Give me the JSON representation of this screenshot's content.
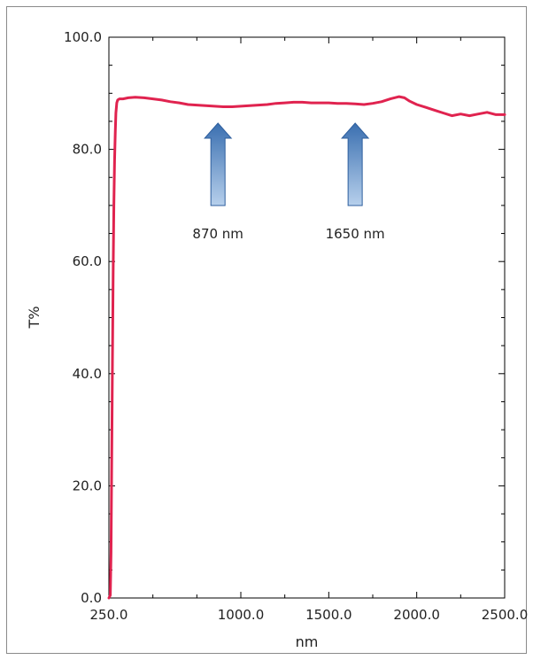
{
  "chart_data": {
    "type": "line",
    "xlabel": "nm",
    "ylabel": "T%",
    "xlim": [
      250.0,
      2500.0
    ],
    "ylim": [
      0.0,
      100.0
    ],
    "x_ticks": [
      {
        "value": 250.0,
        "label": "250.0"
      },
      {
        "value": 1000.0,
        "label": "1000.0"
      },
      {
        "value": 1500.0,
        "label": "1500.0"
      },
      {
        "value": 2000.0,
        "label": "2000.0"
      },
      {
        "value": 2500.0,
        "label": "2500.0"
      }
    ],
    "y_ticks": [
      {
        "value": 0.0,
        "label": "0.0"
      },
      {
        "value": 20.0,
        "label": "20.0"
      },
      {
        "value": 40.0,
        "label": "40.0"
      },
      {
        "value": 60.0,
        "label": "60.0"
      },
      {
        "value": 80.0,
        "label": "80.0"
      },
      {
        "value": 100.0,
        "label": "100.0"
      }
    ],
    "grid": false,
    "series": [
      {
        "color": "#e0234f",
        "x": [
          250,
          258,
          262,
          266,
          270,
          274,
          278,
          282,
          286,
          290,
          295,
          300,
          310,
          330,
          360,
          400,
          450,
          500,
          550,
          600,
          650,
          700,
          750,
          800,
          850,
          900,
          950,
          1000,
          1050,
          1100,
          1150,
          1200,
          1250,
          1300,
          1350,
          1400,
          1450,
          1500,
          1550,
          1600,
          1650,
          1700,
          1750,
          1800,
          1850,
          1900,
          1930,
          1960,
          2000,
          2050,
          2100,
          2150,
          2200,
          2250,
          2300,
          2350,
          2400,
          2450,
          2500
        ],
        "y": [
          0.0,
          0.5,
          8.0,
          25.0,
          42.0,
          58.0,
          70.0,
          78.0,
          83.0,
          86.5,
          88.3,
          88.8,
          89.0,
          89.0,
          89.2,
          89.3,
          89.2,
          89.0,
          88.8,
          88.5,
          88.3,
          88.0,
          87.9,
          87.8,
          87.7,
          87.6,
          87.6,
          87.7,
          87.8,
          87.9,
          88.0,
          88.2,
          88.3,
          88.4,
          88.4,
          88.3,
          88.3,
          88.3,
          88.2,
          88.2,
          88.1,
          88.0,
          88.2,
          88.5,
          89.0,
          89.4,
          89.2,
          88.6,
          88.0,
          87.5,
          87.0,
          86.5,
          86.0,
          86.3,
          86.0,
          86.3,
          86.6,
          86.2,
          86.2
        ]
      }
    ],
    "annotations": [
      {
        "text": "870 nm",
        "x": 870,
        "arrow": "up"
      },
      {
        "text": "1650 nm",
        "x": 1650,
        "arrow": "up"
      }
    ],
    "colors": {
      "line": "#e0234f",
      "arrow_top": "#3a6fb0",
      "arrow_bottom": "#b7d0ec",
      "axis": "#000000"
    }
  }
}
